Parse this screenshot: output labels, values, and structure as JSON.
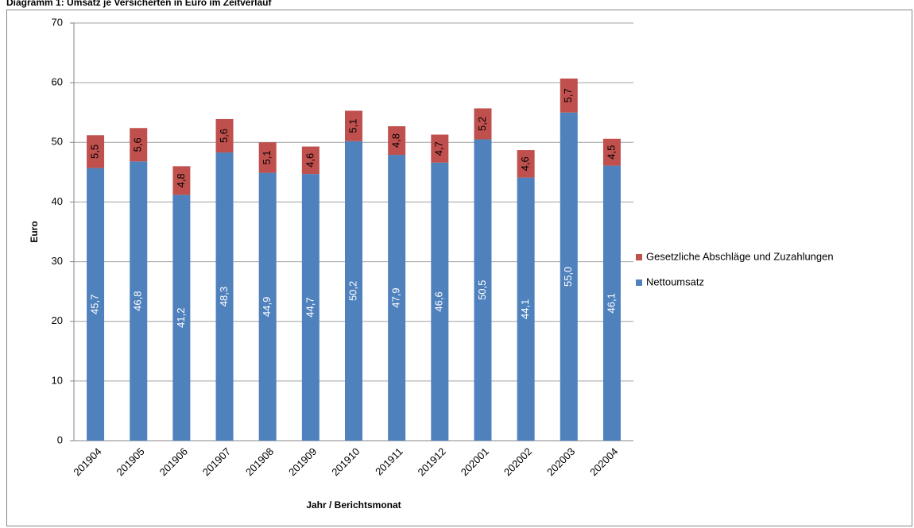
{
  "chart_data": {
    "type": "stacked_bar",
    "title": "Diagramm 1: Umsatz je Versicherten in Euro im Zeitverlauf",
    "y_label": "Euro",
    "x_label": "Jahr / Berichtsmonat",
    "categories": [
      "201904",
      "201905",
      "201906",
      "201907",
      "201908",
      "201909",
      "201910",
      "201911",
      "201912",
      "202001",
      "202002",
      "202003",
      "202004"
    ],
    "series": [
      {
        "name": "Nettoumsatz",
        "color": "#4f81bd",
        "values": [
          45.7,
          46.8,
          41.2,
          48.3,
          44.9,
          44.7,
          50.2,
          47.9,
          46.6,
          50.5,
          44.1,
          55.0,
          46.1
        ],
        "value_labels": [
          "45,7",
          "46,8",
          "41,2",
          "48,3",
          "44,9",
          "44,7",
          "50,2",
          "47,9",
          "46,6",
          "50,5",
          "44,1",
          "55,0",
          "46,1"
        ]
      },
      {
        "name": "Gesetzliche Abschläge und Zuzahlungen",
        "color": "#c0504d",
        "values": [
          5.5,
          5.6,
          4.8,
          5.6,
          5.1,
          4.6,
          5.1,
          4.8,
          4.7,
          5.2,
          4.6,
          5.7,
          4.5
        ],
        "value_labels": [
          "5,5",
          "5,6",
          "4,8",
          "5,6",
          "5,1",
          "4,6",
          "5,1",
          "4,8",
          "4,7",
          "5,2",
          "4,6",
          "5,7",
          "4,5"
        ]
      }
    ],
    "ylim": [
      0,
      70
    ],
    "yticks": [
      0,
      10,
      20,
      30,
      40,
      50,
      60,
      70
    ],
    "grid": true,
    "legend": "right"
  }
}
